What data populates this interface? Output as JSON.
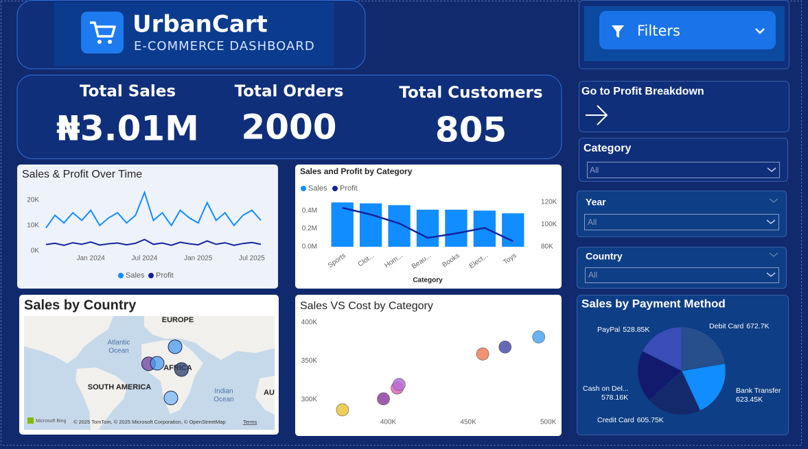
{
  "header": {
    "title": "UrbanCart",
    "subtitle": "E-COMMERCE DASHBOARD"
  },
  "kpis": [
    {
      "label": "Total Sales",
      "value": "₦3.01M"
    },
    {
      "label": "Total Orders",
      "value": "2000"
    },
    {
      "label": "Total Customers",
      "value": "805"
    }
  ],
  "filters": {
    "title": "Filters"
  },
  "navigation": {
    "label": "Go to Profit Breakdown"
  },
  "slicers": [
    {
      "label": "Category",
      "value": "All"
    },
    {
      "label": "Year",
      "value": "All"
    },
    {
      "label": "Country",
      "value": "All"
    }
  ],
  "chart_data": [
    {
      "type": "line",
      "title": "Sales & Profit Over Time",
      "x": [
        "2023-08",
        "2023-09",
        "2023-10",
        "2023-11",
        "2023-12",
        "2024-01",
        "2024-02",
        "2024-03",
        "2024-04",
        "2024-05",
        "2024-06",
        "2024-07",
        "2024-08",
        "2024-09",
        "2024-10",
        "2024-11",
        "2024-12",
        "2025-01",
        "2025-02",
        "2025-03",
        "2025-04",
        "2025-05",
        "2025-06",
        "2025-07",
        "2025-08"
      ],
      "series": [
        {
          "name": "Sales",
          "color": "#118dff",
          "values": [
            9000,
            14000,
            11000,
            15000,
            12000,
            16000,
            10000,
            13000,
            15000,
            11000,
            14000,
            23000,
            12000,
            15000,
            10000,
            16000,
            13000,
            11000,
            19000,
            12000,
            15000,
            10000,
            14000,
            16000,
            12000
          ]
        },
        {
          "name": "Profit",
          "color": "#12239e",
          "values": [
            2500,
            3000,
            2200,
            3200,
            2600,
            3500,
            2300,
            2800,
            3100,
            2400,
            3000,
            4500,
            2600,
            3100,
            2200,
            3400,
            2800,
            2400,
            3900,
            2600,
            3200,
            2200,
            2900,
            3300,
            2600
          ]
        }
      ],
      "xlim": [
        "2023-08",
        "2025-08"
      ],
      "xticks": [
        {
          "value": "2024-01",
          "label": "Jan 2024"
        },
        {
          "value": "2024-07",
          "label": "Jul 2024"
        },
        {
          "value": "2025-01",
          "label": "Jan 2025"
        },
        {
          "value": "2025-07",
          "label": "Jul 2025"
        }
      ],
      "ylim": [
        0,
        24000
      ],
      "yticks": [
        {
          "value": 0,
          "label": "0K"
        },
        {
          "value": 10000,
          "label": "10K"
        },
        {
          "value": 20000,
          "label": "20K"
        }
      ],
      "grid": false
    },
    {
      "type": "bar",
      "title": "Sales and Profit by Category",
      "xlabel": "Category",
      "categories": [
        "Sports",
        "Clot...",
        "Hom...",
        "Beau...",
        "Books",
        "Elect...",
        "Toys"
      ],
      "series": [
        {
          "name": "Sales",
          "color": "#118dff",
          "values": [
            490000,
            480000,
            460000,
            410000,
            410000,
            400000,
            370000
          ]
        },
        {
          "name": "Profit",
          "color": "#12239e",
          "axis": "y2",
          "values": [
            115000,
            109000,
            101000,
            88000,
            92000,
            97000,
            85000
          ]
        }
      ],
      "ylim": [
        0,
        500000
      ],
      "yticks": [
        {
          "value": 0,
          "label": "0.0M"
        },
        {
          "value": 200000,
          "label": "0.2M"
        },
        {
          "value": 400000,
          "label": "0.4M"
        }
      ],
      "y2lim": [
        80000,
        120000
      ],
      "y2ticks": [
        {
          "value": 80000,
          "label": "80K"
        },
        {
          "value": 100000,
          "label": "100K"
        },
        {
          "value": 120000,
          "label": "120K"
        }
      ],
      "grid": false
    },
    {
      "type": "map",
      "title": "Sales by Country",
      "labels": [
        "EUROPE",
        "Atlantic",
        "Ocean",
        "AFRICA",
        "SOUTH AMERICA",
        "Indian",
        "Ocean",
        "AU"
      ],
      "attribution": "© 2025 TomTom, © 2025 Microsoft Corporation, © OpenStreetMap",
      "terms": "Terms",
      "provider": "Microsoft Bing",
      "xlim": [
        -95,
        80
      ],
      "ylim": [
        -40,
        60
      ],
      "lon": [
        10.5,
        -8,
        -2,
        15,
        7.6
      ],
      "lat": [
        33,
        18,
        18.5,
        13,
        -12
      ],
      "colors": [
        "#4a9bf0",
        "#6b3fa0",
        "#4a9bf0",
        "#2b3f6b",
        "#7ab8f5"
      ]
    },
    {
      "type": "scatter",
      "title": "Sales VS Cost by Category",
      "x": [
        371400,
        397000,
        405600,
        406800,
        459000,
        473000,
        494000
      ],
      "y": [
        286700,
        301000,
        315000,
        319500,
        359000,
        368000,
        381000
      ],
      "colors": [
        "#e8c43a",
        "#8e3fa0",
        "#e066b8",
        "#b96fd8",
        "#ee7f5a",
        "#4a4fa8",
        "#4ea4f0"
      ],
      "xlim": [
        344000,
        507000
      ],
      "xticks": [
        {
          "value": 400000,
          "label": "400K"
        },
        {
          "value": 450000,
          "label": "450K"
        },
        {
          "value": 500000,
          "label": "500K"
        }
      ],
      "ylim": [
        276000,
        409000
      ],
      "yticks": [
        {
          "value": 300000,
          "label": "300K"
        },
        {
          "value": 350000,
          "label": "350K"
        },
        {
          "value": 400000,
          "label": "400K"
        }
      ],
      "grid": false
    },
    {
      "type": "pie",
      "title": "Sales by Payment Method",
      "categories": [
        "Debit Card",
        "Bank Transfer",
        "Credit Card",
        "Cash on Del...",
        "PayPal"
      ],
      "values": [
        672.7,
        623.45,
        605.75,
        578.16,
        528.85
      ],
      "value_labels": [
        "672.7K",
        "623.45K",
        "605.75K",
        "578.16K",
        "528.85K"
      ],
      "colors": [
        "#264f8c",
        "#118dff",
        "#13296b",
        "#121a6e",
        "#3b4db8"
      ]
    }
  ]
}
